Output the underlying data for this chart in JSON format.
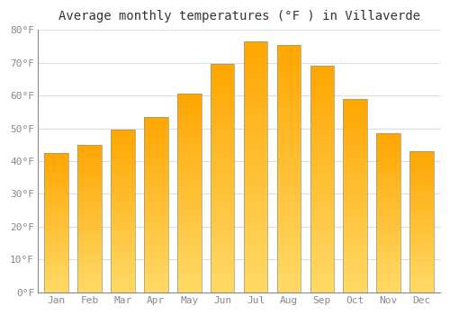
{
  "title": "Average monthly temperatures (°F ) in Villaverde",
  "months": [
    "Jan",
    "Feb",
    "Mar",
    "Apr",
    "May",
    "Jun",
    "Jul",
    "Aug",
    "Sep",
    "Oct",
    "Nov",
    "Dec"
  ],
  "values": [
    42.5,
    45.0,
    49.5,
    53.5,
    60.5,
    69.5,
    76.5,
    75.5,
    69.0,
    59.0,
    48.5,
    43.0
  ],
  "bar_color_top": "#FFA500",
  "bar_color_bottom": "#FFD966",
  "bar_edge_color": "#888866",
  "bar_edge_width": 0.5,
  "ylim": [
    0,
    80
  ],
  "yticks": [
    0,
    10,
    20,
    30,
    40,
    50,
    60,
    70,
    80
  ],
  "ytick_labels": [
    "0°F",
    "10°F",
    "20°F",
    "30°F",
    "40°F",
    "50°F",
    "60°F",
    "70°F",
    "80°F"
  ],
  "background_color": "#ffffff",
  "plot_bg_color": "#ffffff",
  "grid_color": "#dddddd",
  "title_fontsize": 10,
  "tick_fontsize": 8,
  "tick_color": "#888888",
  "bar_width": 0.72
}
